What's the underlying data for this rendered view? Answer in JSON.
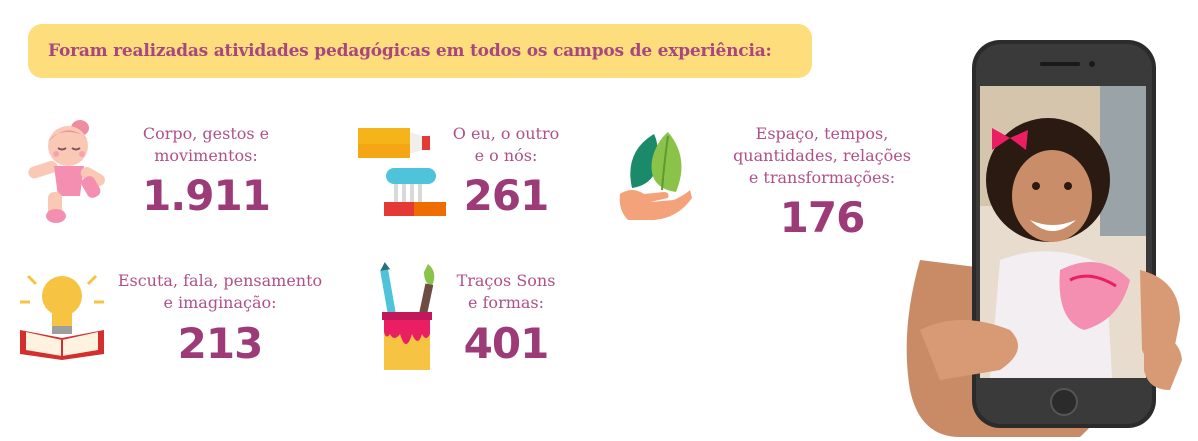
{
  "banner": {
    "text": "Foram realizadas atividades pedagógicas em todos os campos de experiência:"
  },
  "fields": [
    {
      "label_lines": [
        "Corpo, gestos e",
        "movimentos:"
      ],
      "value": "1.911",
      "icon": "dancing-child-icon"
    },
    {
      "label_lines": [
        "O eu, o outro",
        "e o nós:"
      ],
      "value": "261",
      "icon": "toothbrush-toothpaste-icon"
    },
    {
      "label_lines": [
        "Espaço, tempos,",
        "quantidades, relações",
        "e transformações:"
      ],
      "value": "176",
      "icon": "hand-leaf-icon"
    },
    {
      "label_lines": [
        "Escuta, fala, pensamento",
        "e imaginação:"
      ],
      "value": "213",
      "icon": "book-lightbulb-icon"
    },
    {
      "label_lines": [
        "Traços Sons",
        "e formas:"
      ],
      "value": "401",
      "icon": "paint-pot-brushes-icon"
    }
  ],
  "colors": {
    "banner_bg": "#fddd7c",
    "text": "#a9467f"
  },
  "phone": {
    "icon": "smartphone-photo-icon"
  }
}
